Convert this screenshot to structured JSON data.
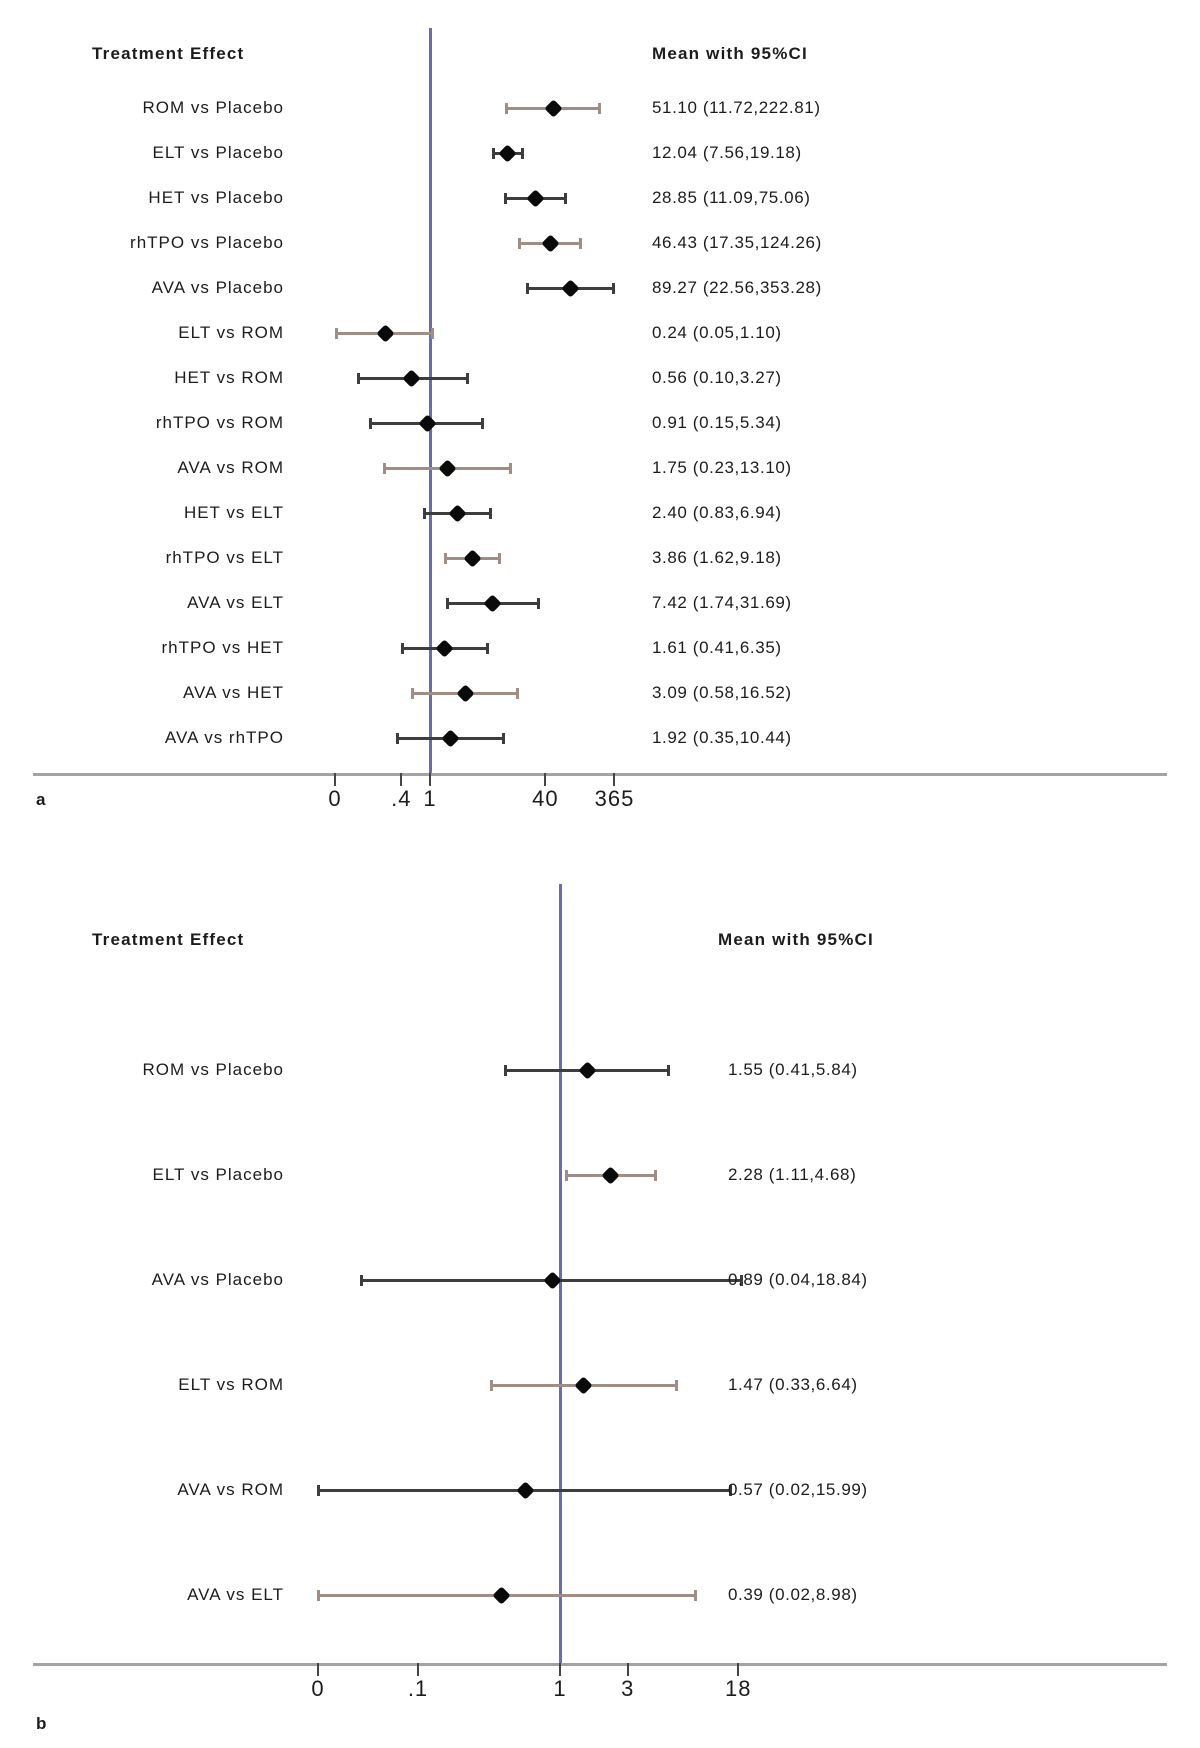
{
  "figure": {
    "background": "#ffffff",
    "colors": {
      "reference_line": "#6b6bae",
      "axis_line": "#a3a3a3",
      "tick": "#444444",
      "marker": "#0a0a0a",
      "ci_dark": "#3d3d3d",
      "ci_tan": "#a08d86",
      "text": "#1c1c1c"
    }
  },
  "chart_data": [
    {
      "type": "scatter",
      "variant": "forest-plot",
      "panel_label": "a",
      "col_header_left": "Treatment Effect",
      "col_header_right": "Mean with 95%CI",
      "x_axis": {
        "scale": "log10",
        "reference_line_x": 1,
        "range_hint": [
          0.05,
          400
        ]
      },
      "x_ticks": [
        {
          "label": "0",
          "value": 0
        },
        {
          "label": ".4",
          "value": 0.4
        },
        {
          "label": "1",
          "value": 1
        },
        {
          "label": "40",
          "value": 40
        },
        {
          "label": "365",
          "value": 365
        }
      ],
      "rows": [
        {
          "label": "ROM vs Placebo",
          "mean": 51.1,
          "ci_low": 11.72,
          "ci_high": 222.81,
          "display": "51.10 (11.72,222.81)",
          "ci_color": "tan"
        },
        {
          "label": "ELT vs Placebo",
          "mean": 12.04,
          "ci_low": 7.56,
          "ci_high": 19.18,
          "display": "12.04 (7.56,19.18)",
          "ci_color": "dark"
        },
        {
          "label": "HET vs Placebo",
          "mean": 28.85,
          "ci_low": 11.09,
          "ci_high": 75.06,
          "display": "28.85 (11.09,75.06)",
          "ci_color": "dark"
        },
        {
          "label": "rhTPO vs Placebo",
          "mean": 46.43,
          "ci_low": 17.35,
          "ci_high": 124.26,
          "display": "46.43 (17.35,124.26)",
          "ci_color": "tan"
        },
        {
          "label": "AVA vs Placebo",
          "mean": 89.27,
          "ci_low": 22.56,
          "ci_high": 353.28,
          "display": "89.27 (22.56,353.28)",
          "ci_color": "dark"
        },
        {
          "label": "ELT vs ROM",
          "mean": 0.24,
          "ci_low": 0.05,
          "ci_high": 1.1,
          "display": "0.24 (0.05,1.10)",
          "ci_color": "tan"
        },
        {
          "label": "HET vs ROM",
          "mean": 0.56,
          "ci_low": 0.1,
          "ci_high": 3.27,
          "display": "0.56 (0.10,3.27)",
          "ci_color": "dark"
        },
        {
          "label": "rhTPO vs ROM",
          "mean": 0.91,
          "ci_low": 0.15,
          "ci_high": 5.34,
          "display": "0.91 (0.15,5.34)",
          "ci_color": "dark"
        },
        {
          "label": "AVA vs ROM",
          "mean": 1.75,
          "ci_low": 0.23,
          "ci_high": 13.1,
          "display": "1.75 (0.23,13.10)",
          "ci_color": "tan"
        },
        {
          "label": "HET vs ELT",
          "mean": 2.4,
          "ci_low": 0.83,
          "ci_high": 6.94,
          "display": "2.40 (0.83,6.94)",
          "ci_color": "dark"
        },
        {
          "label": "rhTPO vs ELT",
          "mean": 3.86,
          "ci_low": 1.62,
          "ci_high": 9.18,
          "display": "3.86 (1.62,9.18)",
          "ci_color": "tan"
        },
        {
          "label": "AVA vs ELT",
          "mean": 7.42,
          "ci_low": 1.74,
          "ci_high": 31.69,
          "display": "7.42 (1.74,31.69)",
          "ci_color": "dark"
        },
        {
          "label": "rhTPO vs HET",
          "mean": 1.61,
          "ci_low": 0.41,
          "ci_high": 6.35,
          "display": "1.61 (0.41,6.35)",
          "ci_color": "dark"
        },
        {
          "label": "AVA vs HET",
          "mean": 3.09,
          "ci_low": 0.58,
          "ci_high": 16.52,
          "display": "3.09 (0.58,16.52)",
          "ci_color": "tan"
        },
        {
          "label": "AVA vs rhTPO",
          "mean": 1.92,
          "ci_low": 0.35,
          "ci_high": 10.44,
          "display": "1.92 (0.35,10.44)",
          "ci_color": "dark"
        }
      ]
    },
    {
      "type": "scatter",
      "variant": "forest-plot",
      "panel_label": "b",
      "col_header_left": "Treatment Effect",
      "col_header_right": "Mean with 95%CI",
      "x_axis": {
        "scale": "log10",
        "reference_line_x": 1,
        "range_hint": [
          0.02,
          20
        ]
      },
      "x_ticks": [
        {
          "label": "0",
          "value": 0
        },
        {
          "label": ".1",
          "value": 0.1
        },
        {
          "label": "1",
          "value": 1
        },
        {
          "label": "3",
          "value": 3
        },
        {
          "label": "18",
          "value": 18
        }
      ],
      "rows": [
        {
          "label": "ROM vs Placebo",
          "mean": 1.55,
          "ci_low": 0.41,
          "ci_high": 5.84,
          "display": "1.55 (0.41,5.84)",
          "ci_color": "dark"
        },
        {
          "label": "ELT vs Placebo",
          "mean": 2.28,
          "ci_low": 1.11,
          "ci_high": 4.68,
          "display": "2.28 (1.11,4.68)",
          "ci_color": "tan"
        },
        {
          "label": "AVA vs Placebo",
          "mean": 0.89,
          "ci_low": 0.04,
          "ci_high": 18.84,
          "display": "0.89 (0.04,18.84)",
          "ci_color": "dark"
        },
        {
          "label": "ELT vs ROM",
          "mean": 1.47,
          "ci_low": 0.33,
          "ci_high": 6.64,
          "display": "1.47 (0.33,6.64)",
          "ci_color": "tan"
        },
        {
          "label": "AVA vs ROM",
          "mean": 0.57,
          "ci_low": 0.02,
          "ci_high": 15.99,
          "display": "0.57 (0.02,15.99)",
          "ci_color": "dark"
        },
        {
          "label": "AVA vs ELT",
          "mean": 0.39,
          "ci_low": 0.02,
          "ci_high": 8.98,
          "display": "0.39 (0.02,8.98)",
          "ci_color": "tan"
        }
      ]
    }
  ]
}
